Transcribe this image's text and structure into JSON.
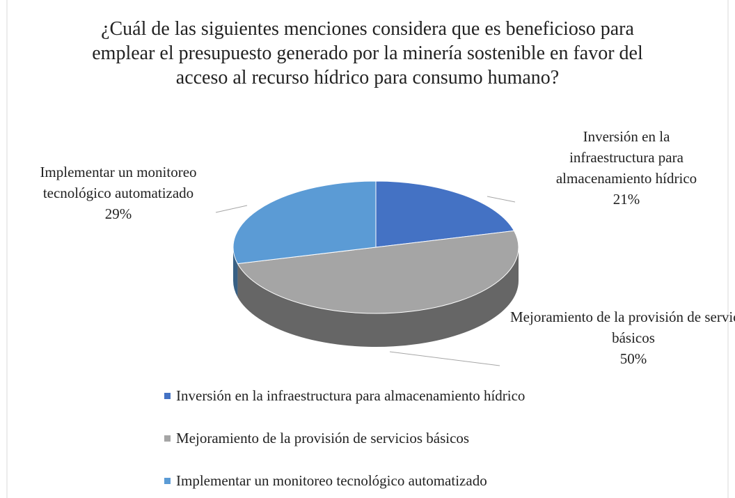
{
  "chart_data": {
    "type": "pie",
    "title": "¿Cuál de las siguientes menciones considera que es beneficioso para emplear el presupuesto generado por la minería sostenible en favor del acceso al recurso hídrico para consumo humano?",
    "categories": [
      "Inversión en la infraestructura para almacenamiento hídrico",
      "Mejoramiento de la provisión de servicios básicos",
      "Implementar un monitoreo tecnológico automatizado"
    ],
    "values": [
      21,
      50,
      29
    ],
    "value_labels": [
      "21%",
      "50%",
      "29%"
    ],
    "colors": [
      "#4472c4",
      "#a5a5a5",
      "#5b9bd5"
    ],
    "legend": "bottom"
  }
}
